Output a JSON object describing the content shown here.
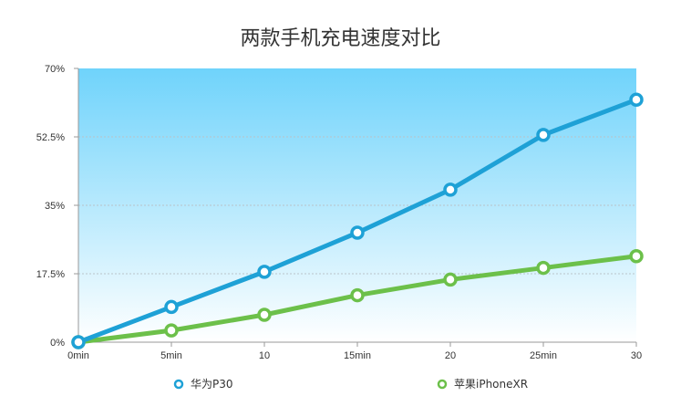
{
  "chart_data": {
    "type": "line",
    "title": "两款手机充电速度对比",
    "xlabel": "",
    "ylabel": "",
    "categories": [
      "0min",
      "5min",
      "10",
      "15min",
      "20",
      "25min",
      "30"
    ],
    "y_ticks": [
      "0%",
      "17.5%",
      "35%",
      "52.5%",
      "70%"
    ],
    "ylim": [
      0,
      70
    ],
    "grid": true,
    "legend_position": "bottom",
    "series": [
      {
        "name": "华为P30",
        "color": "#1ea1d6",
        "values": [
          0,
          9,
          18,
          28,
          39,
          53,
          62
        ]
      },
      {
        "name": "苹果iPhoneXR",
        "color": "#6cc04a",
        "values": [
          0,
          3,
          7,
          12,
          16,
          19,
          22
        ]
      }
    ],
    "background_gradient": [
      "#6fd3fb",
      "#ffffff"
    ]
  }
}
